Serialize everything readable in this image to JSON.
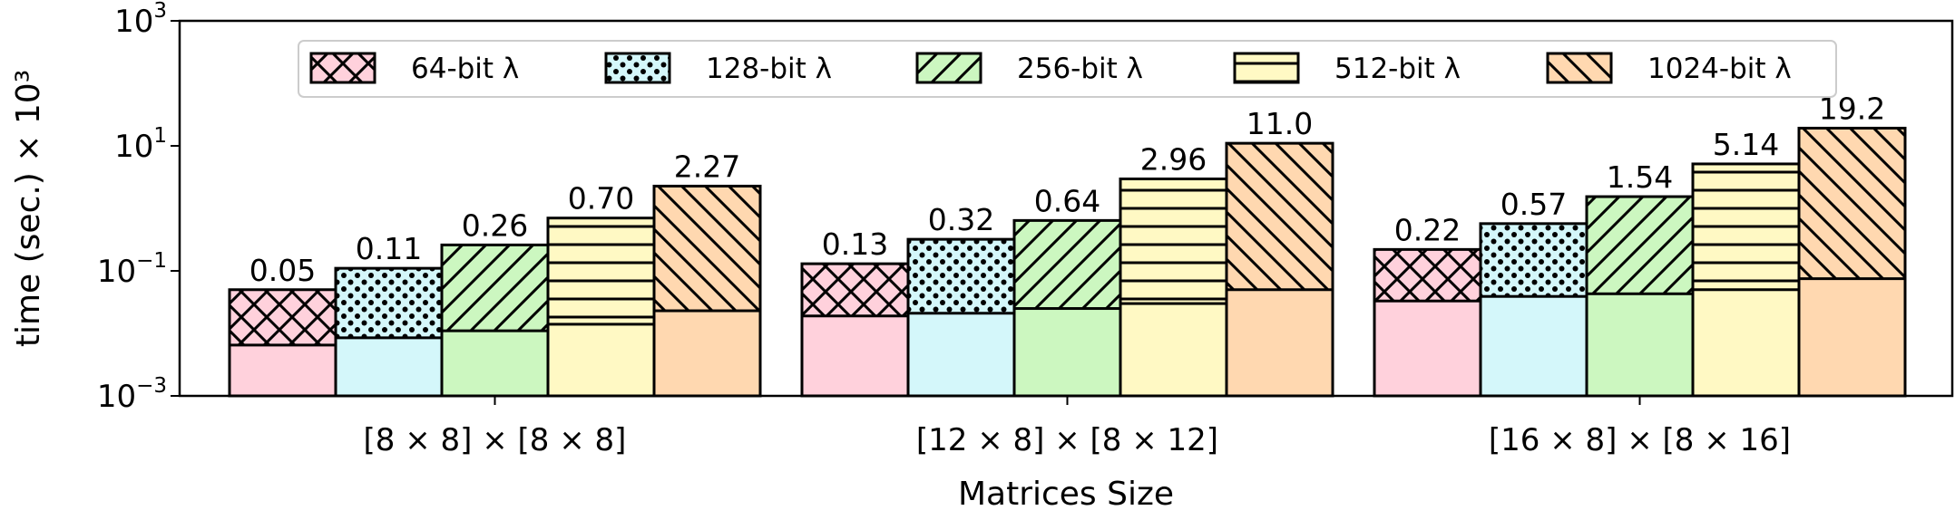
{
  "chart_data": {
    "type": "bar",
    "stacked_hatched_overlay": true,
    "xlabel": "Matrices Size",
    "ylabel": "time (sec.) × 10³",
    "yscale": "log",
    "ylim": [
      0.001,
      1000
    ],
    "yticks": [
      {
        "value": 0.001,
        "base": "10",
        "exp": "−3"
      },
      {
        "value": 0.1,
        "base": "10",
        "exp": "−1"
      },
      {
        "value": 10,
        "base": "10",
        "exp": "1"
      },
      {
        "value": 1000,
        "base": "10",
        "exp": "3"
      }
    ],
    "categories": [
      "[8 × 8] × [8 × 8]",
      "[12 × 8] × [8 × 12]",
      "[16 × 8] × [8 × 16]"
    ],
    "legend_position": "top-center",
    "series": [
      {
        "name": "64-bit λ",
        "pattern": "crosshatch",
        "color": "#ffd1dc",
        "values": [
          0.05,
          0.13,
          0.22
        ],
        "labels": [
          "0.05",
          "0.13",
          "0.22"
        ],
        "base_values": [
          0.0065,
          0.019,
          0.033
        ]
      },
      {
        "name": "128-bit λ",
        "pattern": "dots",
        "color": "#d4f7fa",
        "values": [
          0.11,
          0.32,
          0.57
        ],
        "labels": [
          "0.11",
          "0.32",
          "0.57"
        ],
        "base_values": [
          0.0085,
          0.021,
          0.039
        ]
      },
      {
        "name": "256-bit λ",
        "pattern": "diagonal-up",
        "color": "#ccf7c0",
        "values": [
          0.26,
          0.64,
          1.54
        ],
        "labels": [
          "0.26",
          "0.64",
          "1.54"
        ],
        "base_values": [
          0.011,
          0.025,
          0.043
        ]
      },
      {
        "name": "512-bit λ",
        "pattern": "horizontal",
        "color": "#fff9c4",
        "values": [
          0.7,
          2.96,
          5.14
        ],
        "labels": [
          "0.70",
          "2.96",
          "5.14"
        ],
        "base_values": [
          0.014,
          0.03,
          0.05
        ]
      },
      {
        "name": "1024-bit λ",
        "pattern": "diagonal-down",
        "color": "#ffd8b0",
        "values": [
          2.27,
          11.0,
          19.2
        ],
        "labels": [
          "2.27",
          "11.0",
          "19.2"
        ],
        "base_values": [
          0.023,
          0.05,
          0.075
        ]
      }
    ]
  }
}
